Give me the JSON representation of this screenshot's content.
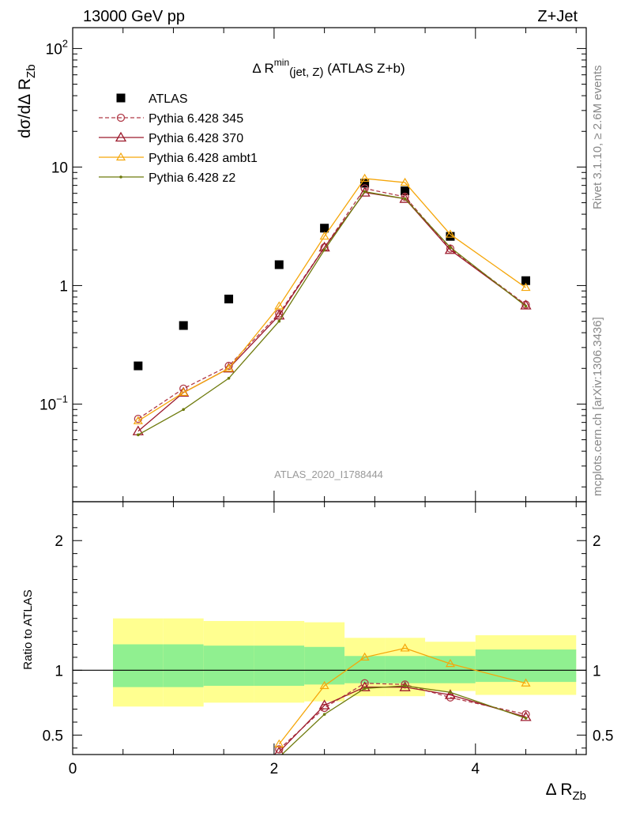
{
  "header": {
    "left": "13000 GeV pp",
    "right": "Z+Jet"
  },
  "side_labels": {
    "rivet": "Rivet 3.1.10, ≥ 2.6M events",
    "mcplots": "mcplots.cern.ch [arXiv:1306.3436]"
  },
  "colors": {
    "ATLAS": "#000000",
    "p345": "#b03a48",
    "p370": "#9c1a2c",
    "ambt1": "#f5a60a",
    "z2": "#6e7a0c",
    "band_inner": "#90f090",
    "band_outer": "#ffff90"
  },
  "chart_data": [
    {
      "type": "scatter",
      "panel": "main",
      "title": "Δ R^min(jet, Z) (ATLAS Z+b)",
      "title_parts": {
        "pre": "Δ R",
        "sup": "min",
        "sub": "(jet, Z)",
        "post": " (ATLAS Z+b)"
      },
      "ylabel": "dσ/dΔ R_Zb",
      "ylabel_parts": {
        "main": "dσ/dΔ R",
        "sub": "Zb"
      },
      "yscale": "log",
      "ylim": [
        0.015,
        150
      ],
      "xlim": [
        0,
        5.1
      ],
      "y_ticks": [
        {
          "value": 0.1,
          "base": "10",
          "exp": "−1"
        },
        {
          "value": 1,
          "text": "1"
        },
        {
          "value": 10,
          "text": "10"
        },
        {
          "value": 100,
          "base": "10",
          "exp": "2"
        }
      ],
      "watermark": "ATLAS_2020_I1788444",
      "legend_position": "top-left",
      "series": [
        {
          "name": "ATLAS",
          "key": "ATLAS",
          "marker": "square",
          "x": [
            0.65,
            1.1,
            1.55,
            2.05,
            2.5,
            2.9,
            3.3,
            3.75,
            4.5
          ],
          "y": [
            0.21,
            0.46,
            0.77,
            1.5,
            3.05,
            7.3,
            6.3,
            2.6,
            1.1
          ],
          "xerr": [
            0.25,
            0.2,
            0.25,
            0.25,
            0.2,
            0.2,
            0.2,
            0.25,
            0.5
          ]
        },
        {
          "name": "Pythia 6.428 345",
          "key": "p345",
          "marker": "circle",
          "dashed": true,
          "x": [
            0.65,
            1.1,
            1.55,
            2.05,
            2.5,
            2.9,
            3.3,
            3.75,
            4.5
          ],
          "y": [
            0.075,
            0.135,
            0.21,
            0.58,
            2.1,
            6.6,
            5.6,
            2.05,
            0.69
          ]
        },
        {
          "name": "Pythia 6.428 370",
          "key": "p370",
          "marker": "triangle",
          "x": [
            0.65,
            1.1,
            1.55,
            2.05,
            2.5,
            2.9,
            3.3,
            3.75,
            4.5
          ],
          "y": [
            0.059,
            0.125,
            0.2,
            0.56,
            2.1,
            6.1,
            5.4,
            2.0,
            0.68
          ]
        },
        {
          "name": "Pythia 6.428 ambt1",
          "key": "ambt1",
          "marker": "triangle-small",
          "x": [
            0.65,
            1.1,
            1.55,
            2.05,
            2.5,
            2.9,
            3.3,
            3.75,
            4.5
          ],
          "y": [
            0.072,
            0.125,
            0.2,
            0.67,
            2.6,
            8.0,
            7.4,
            2.7,
            0.96
          ]
        },
        {
          "name": "Pythia 6.428 z2",
          "key": "z2",
          "marker": "dot",
          "x": [
            0.65,
            1.1,
            1.55,
            2.05,
            2.5,
            2.9,
            3.3,
            3.75,
            4.5
          ],
          "y": [
            0.055,
            0.09,
            0.165,
            0.5,
            2.0,
            6.2,
            5.4,
            2.1,
            0.67
          ]
        }
      ]
    },
    {
      "type": "line",
      "panel": "ratio",
      "ylabel": "Ratio to ATLAS",
      "xlabel": "Δ R_Zb",
      "xlabel_parts": {
        "main": "Δ R",
        "sub": "Zb"
      },
      "xlim": [
        0,
        5.1
      ],
      "ylim": [
        0.35,
        2.3
      ],
      "x_ticks": [
        0,
        2,
        4
      ],
      "y_ticks": [
        0.5,
        1,
        2
      ],
      "bands": [
        {
          "x0": 0.4,
          "x1": 0.9,
          "inner": [
            0.87,
            1.2
          ],
          "outer": [
            0.72,
            1.4
          ]
        },
        {
          "x0": 0.9,
          "x1": 1.3,
          "inner": [
            0.87,
            1.2
          ],
          "outer": [
            0.72,
            1.4
          ]
        },
        {
          "x0": 1.3,
          "x1": 1.8,
          "inner": [
            0.88,
            1.19
          ],
          "outer": [
            0.75,
            1.38
          ]
        },
        {
          "x0": 1.8,
          "x1": 2.3,
          "inner": [
            0.88,
            1.19
          ],
          "outer": [
            0.75,
            1.38
          ]
        },
        {
          "x0": 2.3,
          "x1": 2.7,
          "inner": [
            0.89,
            1.18
          ],
          "outer": [
            0.76,
            1.37
          ]
        },
        {
          "x0": 2.7,
          "x1": 3.1,
          "inner": [
            0.9,
            1.11
          ],
          "outer": [
            0.8,
            1.25
          ]
        },
        {
          "x0": 3.1,
          "x1": 3.5,
          "inner": [
            0.9,
            1.11
          ],
          "outer": [
            0.8,
            1.25
          ]
        },
        {
          "x0": 3.5,
          "x1": 4.0,
          "inner": [
            0.9,
            1.11
          ],
          "outer": [
            0.84,
            1.22
          ]
        },
        {
          "x0": 4.0,
          "x1": 5.0,
          "inner": [
            0.91,
            1.16
          ],
          "outer": [
            0.81,
            1.27
          ]
        }
      ],
      "series": [
        {
          "name": "Pythia 6.428 345",
          "key": "p345",
          "marker": "circle",
          "dashed": true,
          "x": [
            2.05,
            2.5,
            2.9,
            3.3,
            3.75,
            4.5
          ],
          "y": [
            0.39,
            0.71,
            0.9,
            0.89,
            0.79,
            0.66
          ]
        },
        {
          "name": "Pythia 6.428 370",
          "key": "p370",
          "marker": "triangle",
          "x": [
            2.05,
            2.5,
            2.9,
            3.3,
            3.75,
            4.5
          ],
          "y": [
            0.37,
            0.73,
            0.87,
            0.87,
            0.81,
            0.64
          ]
        },
        {
          "name": "Pythia 6.428 ambt1",
          "key": "ambt1",
          "marker": "triangle-small",
          "x": [
            2.05,
            2.5,
            2.9,
            3.3,
            3.75,
            4.5
          ],
          "y": [
            0.43,
            0.88,
            1.1,
            1.17,
            1.05,
            0.9
          ]
        },
        {
          "name": "Pythia 6.428 z2",
          "key": "z2",
          "marker": "dot",
          "x": [
            2.05,
            2.5,
            2.9,
            3.3,
            3.75,
            4.5
          ],
          "y": [
            0.33,
            0.66,
            0.86,
            0.88,
            0.83,
            0.63
          ]
        }
      ]
    }
  ]
}
